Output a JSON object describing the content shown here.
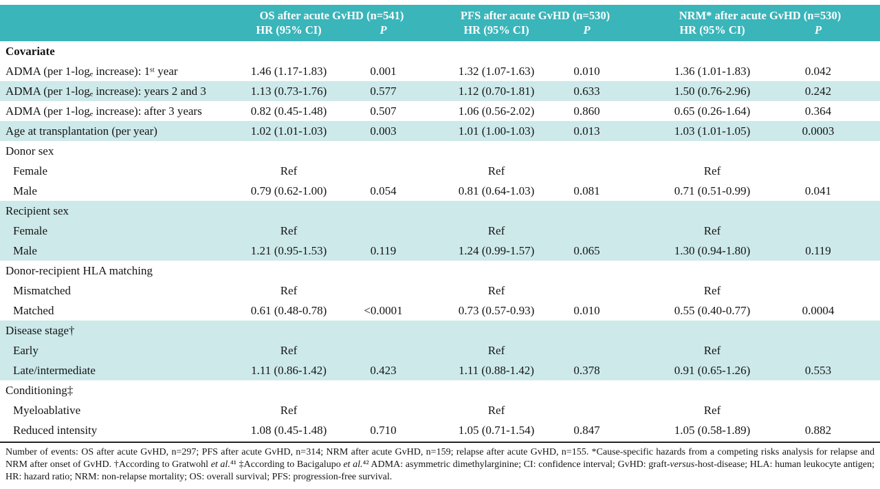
{
  "colors": {
    "header_teal": "#3ab5ba",
    "stripe_teal": "#cde9ea"
  },
  "header": {
    "groups": [
      {
        "title": "OS after acute GvHD (n=541)",
        "hr": "HR (95% CI)",
        "p": "P"
      },
      {
        "title": "PFS after acute GvHD (n=530)",
        "hr": "HR (95% CI)",
        "p": "P"
      },
      {
        "title": "NRM* after acute GvHD (n=530)",
        "hr": "HR (95% CI)",
        "p": "P"
      }
    ]
  },
  "rows": [
    {
      "label": "Covariate"
    },
    {
      "label": "ADMA (per 1-logₑ increase): 1ˢᵗ year",
      "hr1": "1.46 (1.17-1.83)",
      "p1": "0.001",
      "hr2": "1.32 (1.07-1.63)",
      "p2": "0.010",
      "hr3": "1.36 (1.01-1.83)",
      "p3": "0.042"
    },
    {
      "label": "ADMA (per 1-logₑ increase): years 2 and 3",
      "hr1": "1.13 (0.73-1.76)",
      "p1": "0.577",
      "hr2": "1.12 (0.70-1.81)",
      "p2": "0.633",
      "hr3": "1.50 (0.76-2.96)",
      "p3": "0.242"
    },
    {
      "label": "ADMA (per 1-logₑ increase): after 3 years",
      "hr1": "0.82 (0.45-1.48)",
      "p1": "0.507",
      "hr2": "1.06 (0.56-2.02)",
      "p2": "0.860",
      "hr3": "0.65 (0.26-1.64)",
      "p3": "0.364"
    },
    {
      "label": "Age at transplantation (per year)",
      "hr1": "1.02 (1.01-1.03)",
      "p1": "0.003",
      "hr2": "1.01 (1.00-1.03)",
      "p2": "0.013",
      "hr3": "1.03 (1.01-1.05)",
      "p3": "0.0003"
    },
    {
      "label": "Donor sex"
    },
    {
      "label": "Female",
      "hr1": "Ref",
      "p1": "",
      "hr2": "Ref",
      "p2": "",
      "hr3": "Ref",
      "p3": ""
    },
    {
      "label": "Male",
      "hr1": "0.79 (0.62-1.00)",
      "p1": "0.054",
      "hr2": "0.81 (0.64-1.03)",
      "p2": "0.081",
      "hr3": "0.71 (0.51-0.99)",
      "p3": "0.041"
    },
    {
      "label": "Recipient sex"
    },
    {
      "label": "Female",
      "hr1": "Ref",
      "p1": "",
      "hr2": "Ref",
      "p2": "",
      "hr3": "Ref",
      "p3": ""
    },
    {
      "label": "Male",
      "hr1": "1.21 (0.95-1.53)",
      "p1": "0.119",
      "hr2": "1.24 (0.99-1.57)",
      "p2": "0.065",
      "hr3": "1.30 (0.94-1.80)",
      "p3": "0.119"
    },
    {
      "label": "Donor-recipient HLA matching"
    },
    {
      "label": "Mismatched",
      "hr1": "Ref",
      "p1": "",
      "hr2": "Ref",
      "p2": "",
      "hr3": "Ref",
      "p3": ""
    },
    {
      "label": "Matched",
      "hr1": "0.61 (0.48-0.78)",
      "p1": "<0.0001",
      "hr2": "0.73 (0.57-0.93)",
      "p2": "0.010",
      "hr3": "0.55 (0.40-0.77)",
      "p3": "0.0004"
    },
    {
      "label": "Disease stage†"
    },
    {
      "label": "Early",
      "hr1": "Ref",
      "p1": "",
      "hr2": "Ref",
      "p2": "",
      "hr3": "Ref",
      "p3": ""
    },
    {
      "label": "Late/intermediate",
      "hr1": "1.11 (0.86-1.42)",
      "p1": "0.423",
      "hr2": "1.11 (0.88-1.42)",
      "p2": "0.378",
      "hr3": "0.91 (0.65-1.26)",
      "p3": "0.553"
    },
    {
      "label": "Conditioning‡"
    },
    {
      "label": "Myeloablative",
      "hr1": "Ref",
      "p1": "",
      "hr2": "Ref",
      "p2": "",
      "hr3": "Ref",
      "p3": ""
    },
    {
      "label": "Reduced intensity",
      "hr1": "1.08 (0.45-1.48)",
      "p1": "0.710",
      "hr2": "1.05 (0.71-1.54)",
      "p2": "0.847",
      "hr3": "1.05 (0.58-1.89)",
      "p3": "0.882"
    }
  ],
  "footer": {
    "parts": [
      {
        "text": "Number of events: OS after acute GvHD, n=297; PFS after acute GvHD, n=314; NRM after acute GvHD, n=159; relapse after acute GvHD, n=155. *Cause-specific hazards from a competing risks analysis for relapse and NRM after onset of GvHD. †According to Gratwohl "
      },
      {
        "text": "et al."
      },
      {
        "text": "⁴¹ ‡According to Bacigalupo "
      },
      {
        "text": "et al."
      },
      {
        "text": "⁴² ADMA: asymmetric dimethylarginine; CI: confidence interval; GvHD: graft-"
      },
      {
        "text": "versus"
      },
      {
        "text": "-host-disease; HLA: human leukocyte antigen;  HR: hazard ratio; NRM: non-relapse mortality; OS: overall survival; PFS: progression-free survival."
      }
    ]
  }
}
